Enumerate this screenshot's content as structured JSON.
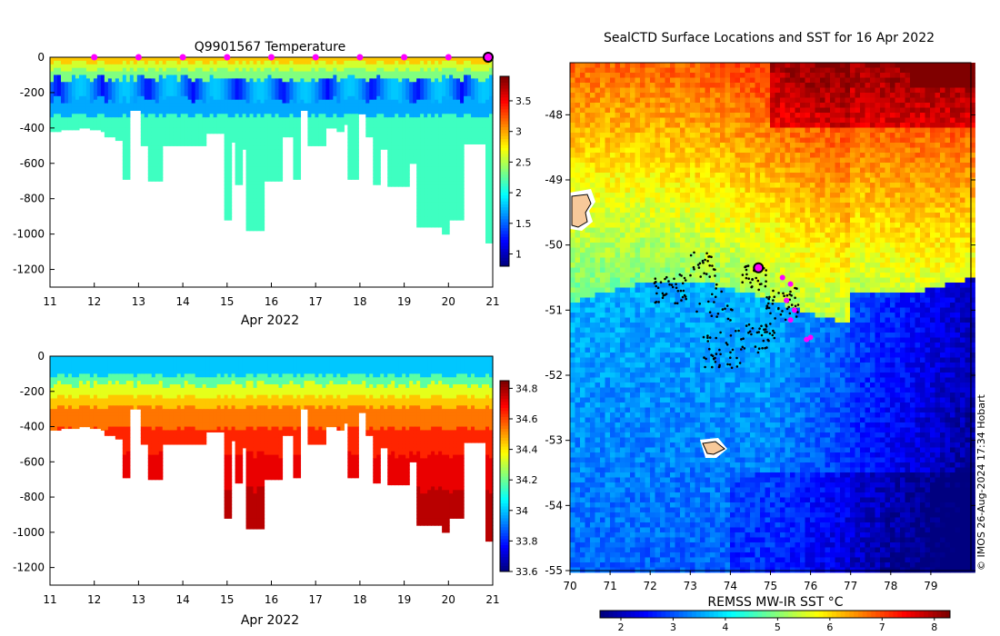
{
  "chart_data": [
    {
      "type": "heatmap",
      "title": "Q9901567  Temperature",
      "xlabel": "Apr 2022",
      "ylabel": "",
      "xlim": [
        11,
        21
      ],
      "ylim": [
        -1300,
        0
      ],
      "xticks": [
        "11",
        "12",
        "13",
        "14",
        "15",
        "16",
        "17",
        "18",
        "19",
        "20",
        "21"
      ],
      "yticks": [
        "0",
        "-200",
        "-400",
        "-600",
        "-800",
        "-1000",
        "-1200"
      ],
      "ytick_values": [
        0,
        -200,
        -400,
        -600,
        -800,
        -1000,
        -1200
      ],
      "profile_markers_x": [
        12,
        13,
        14,
        15,
        16,
        17,
        18,
        19,
        20
      ],
      "latest_marker_x": 21,
      "colorbar": {
        "min": 0.8,
        "max": 3.9,
        "ticks": [
          "1",
          "1.5",
          "2",
          "2.5",
          "3",
          "3.5"
        ],
        "tick_values": [
          1,
          1.5,
          2,
          2.5,
          3,
          3.5
        ],
        "colormap": "jet"
      },
      "profile_max_depth": [
        {
          "x": 11.0,
          "d": -420
        },
        {
          "x": 11.2,
          "d": -410
        },
        {
          "x": 11.6,
          "d": -400
        },
        {
          "x": 11.9,
          "d": -410
        },
        {
          "x": 12.1,
          "d": -420
        },
        {
          "x": 12.2,
          "d": -450
        },
        {
          "x": 12.4,
          "d": -470
        },
        {
          "x": 12.6,
          "d": -690
        },
        {
          "x": 12.8,
          "d": -300
        },
        {
          "x": 13.0,
          "d": -500
        },
        {
          "x": 13.2,
          "d": -700
        },
        {
          "x": 13.5,
          "d": -500
        },
        {
          "x": 14.0,
          "d": -500
        },
        {
          "x": 14.5,
          "d": -430
        },
        {
          "x": 14.9,
          "d": -920
        },
        {
          "x": 15.05,
          "d": -480
        },
        {
          "x": 15.15,
          "d": -720
        },
        {
          "x": 15.3,
          "d": -520
        },
        {
          "x": 15.4,
          "d": -980
        },
        {
          "x": 15.8,
          "d": -700
        },
        {
          "x": 16.2,
          "d": -450
        },
        {
          "x": 16.45,
          "d": -690
        },
        {
          "x": 16.6,
          "d": -300
        },
        {
          "x": 16.8,
          "d": -500
        },
        {
          "x": 17.2,
          "d": -400
        },
        {
          "x": 17.4,
          "d": -420
        },
        {
          "x": 17.6,
          "d": -380
        },
        {
          "x": 17.7,
          "d": -690
        },
        {
          "x": 17.9,
          "d": -320
        },
        {
          "x": 18.1,
          "d": -450
        },
        {
          "x": 18.25,
          "d": -720
        },
        {
          "x": 18.4,
          "d": -520
        },
        {
          "x": 18.6,
          "d": -730
        },
        {
          "x": 19.1,
          "d": -600
        },
        {
          "x": 19.2,
          "d": -960
        },
        {
          "x": 19.8,
          "d": -1000
        },
        {
          "x": 20.0,
          "d": -920
        },
        {
          "x": 20.3,
          "d": -490
        },
        {
          "x": 20.8,
          "d": -1050
        },
        {
          "x": 21.0,
          "d": -1050
        }
      ]
    },
    {
      "type": "heatmap",
      "title": "",
      "xlabel": "Apr 2022",
      "ylabel": "",
      "xlim": [
        11,
        21
      ],
      "ylim": [
        -1300,
        0
      ],
      "xticks": [
        "11",
        "12",
        "13",
        "14",
        "15",
        "16",
        "17",
        "18",
        "19",
        "20",
        "21"
      ],
      "yticks": [
        "0",
        "-200",
        "-400",
        "-600",
        "-800",
        "-1000",
        "-1200"
      ],
      "ytick_values": [
        0,
        -200,
        -400,
        -600,
        -800,
        -1000,
        -1200
      ],
      "colorbar": {
        "min": 33.6,
        "max": 34.85,
        "ticks": [
          "33.6",
          "33.8",
          "34",
          "34.2",
          "34.4",
          "34.6",
          "34.8"
        ],
        "tick_values": [
          33.6,
          33.8,
          34,
          34.2,
          34.4,
          34.6,
          34.8
        ],
        "colormap": "jet"
      }
    },
    {
      "type": "heatmap",
      "title": "SealCTD Surface Locations and SST for 16 Apr 2022",
      "xlabel": "REMSS MW-IR SST °C",
      "ylabel": "",
      "xlim": [
        70,
        80
      ],
      "ylim": [
        -55,
        -47.2
      ],
      "xticks": [
        "70",
        "71",
        "72",
        "73",
        "74",
        "75",
        "76",
        "77",
        "78",
        "79"
      ],
      "yticks": [
        "-48",
        "-49",
        "-50",
        "-51",
        "-52",
        "-53",
        "-54",
        "-55"
      ],
      "ytick_values": [
        -48,
        -49,
        -50,
        -51,
        -52,
        -53,
        -54,
        -55
      ],
      "colorbar": {
        "min": 1.6,
        "max": 8.3,
        "ticks": [
          "2",
          "3",
          "4",
          "5",
          "6",
          "7",
          "8"
        ],
        "tick_values": [
          2,
          3,
          4,
          5,
          6,
          7,
          8
        ],
        "colormap": "jet"
      },
      "latest_position": {
        "lon": 74.7,
        "lat": -50.35
      },
      "recent_positions": [
        {
          "lon": 75.3,
          "lat": -50.5
        },
        {
          "lon": 75.5,
          "lat": -50.6
        },
        {
          "lon": 75.4,
          "lat": -50.85
        },
        {
          "lon": 75.6,
          "lat": -51.0
        },
        {
          "lon": 75.5,
          "lat": -51.15
        },
        {
          "lon": 75.9,
          "lat": -51.45
        },
        {
          "lon": 76.0,
          "lat": -51.42
        }
      ],
      "track_clusters": [
        {
          "lon": 72.5,
          "lat": -50.7,
          "n": 40,
          "spread": 0.25
        },
        {
          "lon": 73.3,
          "lat": -50.3,
          "n": 25,
          "spread": 0.2
        },
        {
          "lon": 74.6,
          "lat": -50.5,
          "n": 30,
          "spread": 0.2
        },
        {
          "lon": 75.3,
          "lat": -50.9,
          "n": 45,
          "spread": 0.25
        },
        {
          "lon": 74.7,
          "lat": -51.4,
          "n": 35,
          "spread": 0.25
        },
        {
          "lon": 73.8,
          "lat": -51.6,
          "n": 40,
          "spread": 0.3
        },
        {
          "lon": 73.6,
          "lat": -50.9,
          "n": 20,
          "spread": 0.3
        }
      ],
      "credit": "© IMOS 26-Aug-2024 17:34 Hobart"
    }
  ]
}
